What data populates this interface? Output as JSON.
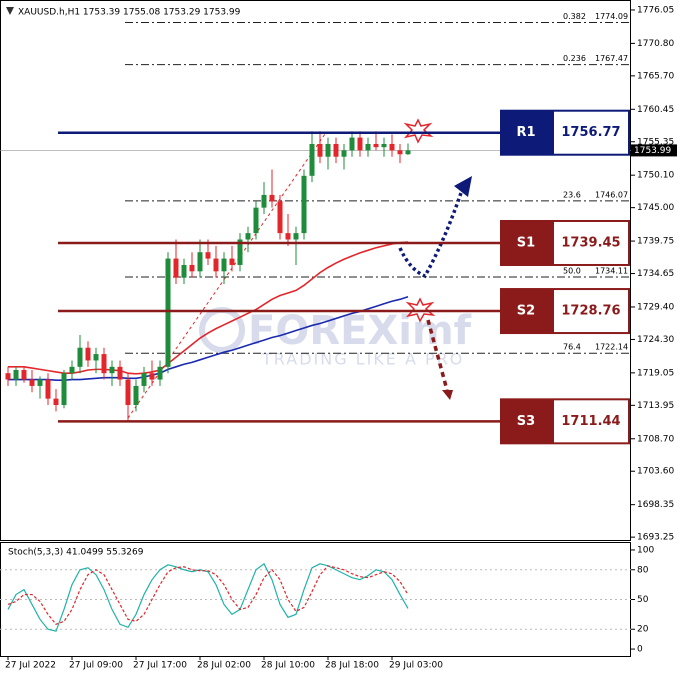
{
  "chart_data": {
    "type": "candlestick",
    "title": "XAUUSD.h,H1 1753.39 1755.08 1753.29 1753.99",
    "categories": [
      "27 Jul 2022",
      null,
      null,
      null,
      null,
      null,
      null,
      null,
      "27 Jul 09:00",
      null,
      null,
      null,
      null,
      null,
      null,
      null,
      "27 Jul 17:00",
      null,
      null,
      null,
      null,
      null,
      null,
      null,
      "28 Jul 02:00",
      null,
      null,
      null,
      null,
      null,
      null,
      null,
      "28 Jul 10:00",
      null,
      null,
      null,
      null,
      null,
      null,
      null,
      "28 Jul 18:00",
      null,
      null,
      null,
      null,
      null,
      null,
      null,
      "29 Jul 03:00",
      null,
      null
    ],
    "open": [
      1719,
      1718,
      1719.5,
      1718,
      1717,
      1718,
      1715,
      1714,
      1719,
      1720,
      1723,
      1721,
      1722,
      1719,
      1720,
      1718,
      1714,
      1717,
      1719,
      1718,
      1720,
      1737,
      1734,
      1736,
      1735,
      1738,
      1737,
      1735,
      1737,
      1736,
      1740,
      1741,
      1745,
      1747,
      1746,
      1741,
      1740,
      1741,
      1750,
      1755,
      1753,
      1755,
      1753,
      1754,
      1756,
      1754,
      1755,
      1754.5,
      1755,
      1754,
      1753.39
    ],
    "high": [
      1720,
      1720,
      1720,
      1719.5,
      1718.5,
      1719,
      1716.5,
      1719.5,
      1721,
      1725,
      1724,
      1723,
      1723,
      1721,
      1721,
      1719,
      1718,
      1720,
      1721,
      1721,
      1738,
      1740,
      1737,
      1738,
      1740,
      1740,
      1739,
      1738,
      1739,
      1741,
      1742,
      1746,
      1749,
      1751,
      1747,
      1744,
      1742,
      1751,
      1757,
      1757,
      1756,
      1756,
      1755,
      1757,
      1757,
      1756,
      1757,
      1756,
      1756.5,
      1755,
      1755.08
    ],
    "low": [
      1717,
      1717,
      1717.5,
      1716,
      1715,
      1714,
      1713,
      1713.5,
      1718,
      1719,
      1720,
      1719,
      1718,
      1717,
      1717,
      1711.44,
      1713,
      1716,
      1717,
      1717,
      1719,
      1733,
      1733,
      1734,
      1734,
      1736,
      1734,
      1733,
      1735,
      1735,
      1738,
      1740,
      1744,
      1745,
      1740,
      1739,
      1736,
      1740,
      1749,
      1752,
      1751,
      1752,
      1751,
      1753,
      1753,
      1753,
      1754,
      1753,
      1753,
      1752,
      1753.29
    ],
    "close": [
      1718,
      1719.5,
      1718,
      1717,
      1718,
      1715,
      1714,
      1719,
      1720,
      1723,
      1721,
      1722,
      1719,
      1720,
      1718,
      1714,
      1717,
      1719,
      1718,
      1720,
      1737,
      1734,
      1736,
      1735,
      1738,
      1737,
      1735,
      1737,
      1736,
      1740,
      1741,
      1745,
      1747,
      1746,
      1741,
      1740,
      1741,
      1750,
      1755,
      1753,
      1755,
      1753,
      1754,
      1756,
      1754,
      1755,
      1754.5,
      1755,
      1754,
      1753.39,
      1753.99
    ],
    "up_color": "#1e8c3a",
    "down_color": "#e3262b",
    "overlays": [
      {
        "color": "#e3262b",
        "values": [
          1720,
          1720,
          1720,
          1719.8,
          1719.6,
          1719.4,
          1719.2,
          1719,
          1719,
          1719.2,
          1719.5,
          1719.6,
          1719.6,
          1719.5,
          1719.4,
          1719,
          1718.9,
          1719,
          1719.2,
          1719.5,
          1720.5,
          1721.5,
          1722.5,
          1723.5,
          1724.5,
          1725.3,
          1726,
          1726.6,
          1727.2,
          1727.8,
          1728.4,
          1729,
          1729.8,
          1730.6,
          1731.2,
          1731.6,
          1732,
          1732.8,
          1733.8,
          1734.8,
          1735.6,
          1736.3,
          1736.9,
          1737.4,
          1737.9,
          1738.3,
          1738.7,
          1739,
          1739.3,
          1739.5,
          1739.6
        ]
      },
      {
        "color": "#1a2ab0",
        "values": [
          1718,
          1718,
          1718,
          1718,
          1718,
          1718,
          1717.9,
          1717.9,
          1718,
          1718,
          1718.1,
          1718.2,
          1718.3,
          1718.3,
          1718.3,
          1718.2,
          1718.2,
          1718.4,
          1718.7,
          1719,
          1719.6,
          1720,
          1720.4,
          1720.7,
          1721.1,
          1721.5,
          1721.9,
          1722.3,
          1722.6,
          1723,
          1723.4,
          1723.8,
          1724.2,
          1724.6,
          1724.9,
          1725.3,
          1725.7,
          1726.1,
          1726.5,
          1726.8,
          1727.2,
          1727.6,
          1728,
          1728.4,
          1728.7,
          1729.1,
          1729.5,
          1729.9,
          1730.3,
          1730.6,
          1731
        ]
      }
    ],
    "ylim": [
      1692.8,
      1777.3
    ],
    "yticks": [
      1776.05,
      {
        "value": 1770.8,
        "label": "1770.80"
      },
      {
        "value": 1765.7,
        "label": "1765.70"
      },
      1760.45,
      1755.35,
      {
        "value": 1750.1,
        "label": "1750.10"
      },
      {
        "value": 1745,
        "label": "1745.00"
      },
      1739.75,
      1734.65,
      {
        "value": 1729.4,
        "label": "1729.40"
      },
      {
        "value": 1724.3,
        "label": "1724.30"
      },
      1719.05,
      1713.95,
      {
        "value": 1708.7,
        "label": "1708.70"
      },
      {
        "value": 1703.6,
        "label": "1703.60"
      },
      1698.35,
      1693.25
    ],
    "last_price": 1753.99,
    "fib_levels": [
      {
        "label": "0.382",
        "value": 1774.09
      },
      {
        "label": "0.236",
        "value": 1767.47
      },
      {
        "label": "23.6",
        "value": 1746.07
      },
      {
        "label": "50.0",
        "value": 1734.11
      },
      {
        "label": "76.4",
        "value": 1722.14
      }
    ],
    "sr_levels": [
      {
        "name": "R1",
        "value": 1756.77,
        "color": "#0d1a78"
      },
      {
        "name": "S1",
        "value": 1739.45,
        "color": "#8b1a1a"
      },
      {
        "name": "S2",
        "value": 1728.76,
        "color": "#8b1a1a"
      },
      {
        "name": "S3",
        "value": 1711.44,
        "color": "#8b1a1a"
      }
    ],
    "watermark": {
      "brand": "FOREXimf",
      "tagline": "TRADING LIKE A PRO"
    },
    "indicator": {
      "title": "Stoch(5,3,3) 41.0499 55.3269",
      "ylim": [
        -7,
        107
      ],
      "yticks": [
        100,
        80,
        50,
        20,
        0
      ],
      "series": [
        {
          "color": "#20b2aa",
          "values": [
            40,
            55,
            60,
            45,
            30,
            20,
            18,
            40,
            65,
            80,
            82,
            75,
            60,
            40,
            25,
            22,
            35,
            55,
            70,
            80,
            85,
            83,
            80,
            78,
            80,
            78,
            65,
            45,
            35,
            40,
            60,
            80,
            86,
            70,
            45,
            32,
            35,
            60,
            82,
            86,
            84,
            80,
            76,
            72,
            70,
            74,
            80,
            78,
            70,
            55,
            41
          ]
        },
        {
          "color": "#e3262b",
          "dashed": true,
          "values": [
            45,
            48,
            55,
            55,
            48,
            35,
            25,
            28,
            40,
            60,
            75,
            80,
            75,
            60,
            45,
            30,
            28,
            35,
            50,
            65,
            78,
            82,
            83,
            80,
            79,
            79,
            75,
            65,
            50,
            40,
            42,
            55,
            72,
            80,
            70,
            50,
            38,
            42,
            58,
            75,
            84,
            82,
            80,
            76,
            73,
            72,
            75,
            78,
            76,
            68,
            55
          ]
        }
      ]
    }
  }
}
